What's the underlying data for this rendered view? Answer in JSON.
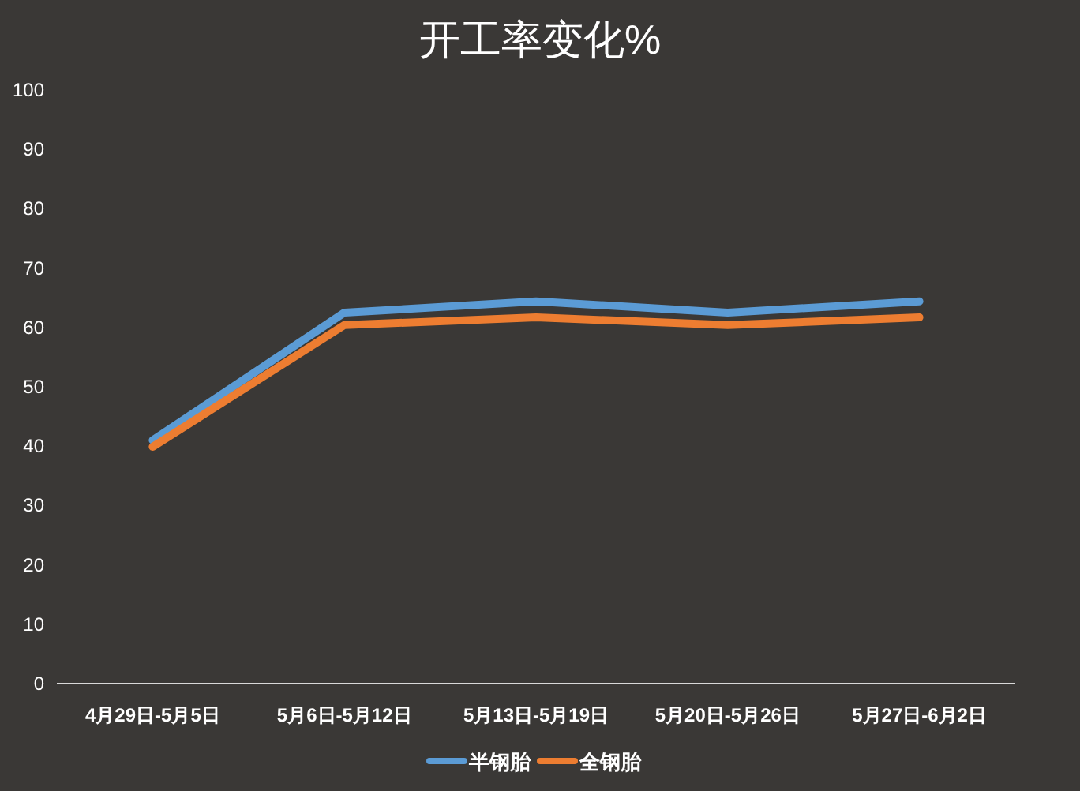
{
  "chart_data": {
    "type": "line",
    "title": "开工率变化%",
    "categories": [
      "4月29日-5月5日",
      "5月6日-5月12日",
      "5月13日-5月19日",
      "5月20日-5月26日",
      "5月27日-6月2日"
    ],
    "series": [
      {
        "name": "半钢胎",
        "color": "#5b9bd5",
        "values": [
          41.0,
          62.5,
          64.4,
          62.5,
          64.4
        ]
      },
      {
        "name": "全钢胎",
        "color": "#ed7d31",
        "values": [
          39.9,
          60.4,
          61.7,
          60.4,
          61.7
        ]
      }
    ],
    "ylim": [
      0,
      100
    ],
    "yticks": [
      0,
      10,
      20,
      30,
      40,
      50,
      60,
      70,
      80,
      90,
      100
    ],
    "grid": false,
    "legend": "bottom",
    "marker": "none",
    "line_style": "solid"
  }
}
